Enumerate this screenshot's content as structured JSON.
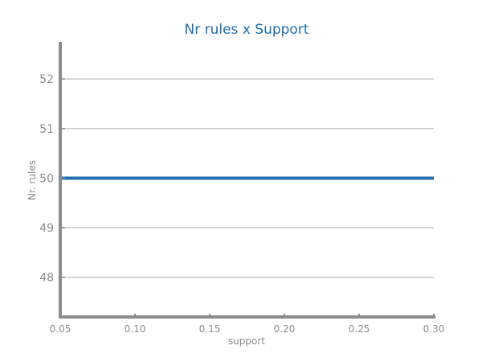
{
  "chart_data": {
    "type": "line",
    "title": "Nr rules x Support",
    "xlabel": "support",
    "ylabel": "Nr. rules",
    "xlim": [
      0.05,
      0.3
    ],
    "ylim": [
      47.2,
      52.75
    ],
    "x_ticks": [
      0.05,
      0.1,
      0.15,
      0.2,
      0.25,
      0.3
    ],
    "x_tick_labels": [
      "0.05",
      "0.10",
      "0.15",
      "0.20",
      "0.25",
      "0.30"
    ],
    "y_ticks": [
      48,
      49,
      50,
      51,
      52
    ],
    "y_tick_labels": [
      "48",
      "49",
      "50",
      "51",
      "52"
    ],
    "grid": "horizontal",
    "series": [
      {
        "x": [
          0.05,
          0.1,
          0.15,
          0.2,
          0.25,
          0.3
        ],
        "y": [
          50,
          50,
          50,
          50,
          50,
          50
        ],
        "color": "#1f6fb0"
      }
    ],
    "colors": {
      "title": "#1f6fb0",
      "axis": "#8c8c8c",
      "grid": "#cccccc",
      "tick_text": "#8c8c8c"
    }
  }
}
